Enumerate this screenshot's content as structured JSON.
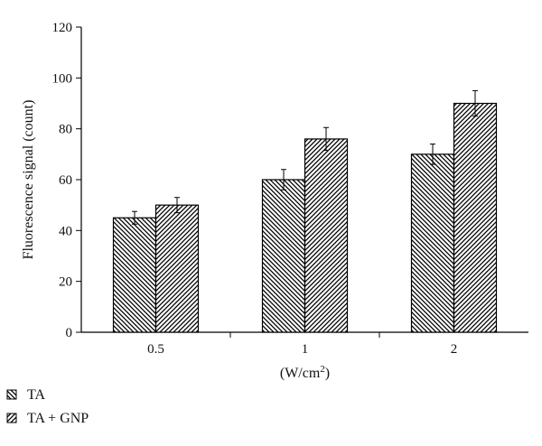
{
  "chart_data": {
    "type": "bar",
    "categories": [
      "0.5",
      "1",
      "2"
    ],
    "series": [
      {
        "name": "TA",
        "values": [
          45,
          60,
          70
        ],
        "errors": [
          2.5,
          4,
          4
        ],
        "pattern": "backslash"
      },
      {
        "name": "TA + GNP",
        "values": [
          50,
          76,
          90
        ],
        "errors": [
          3,
          4.5,
          5
        ],
        "pattern": "slash"
      }
    ],
    "xlabel": "(W/cm",
    "xlabel_sup": "2",
    "xlabel_tail": ")",
    "ylabel": "Fluorescence signal (count)",
    "ylim": [
      0,
      120
    ],
    "yticks": [
      0,
      20,
      40,
      60,
      80,
      100,
      120
    ],
    "grid": false,
    "legend_position": "bottom-left"
  }
}
